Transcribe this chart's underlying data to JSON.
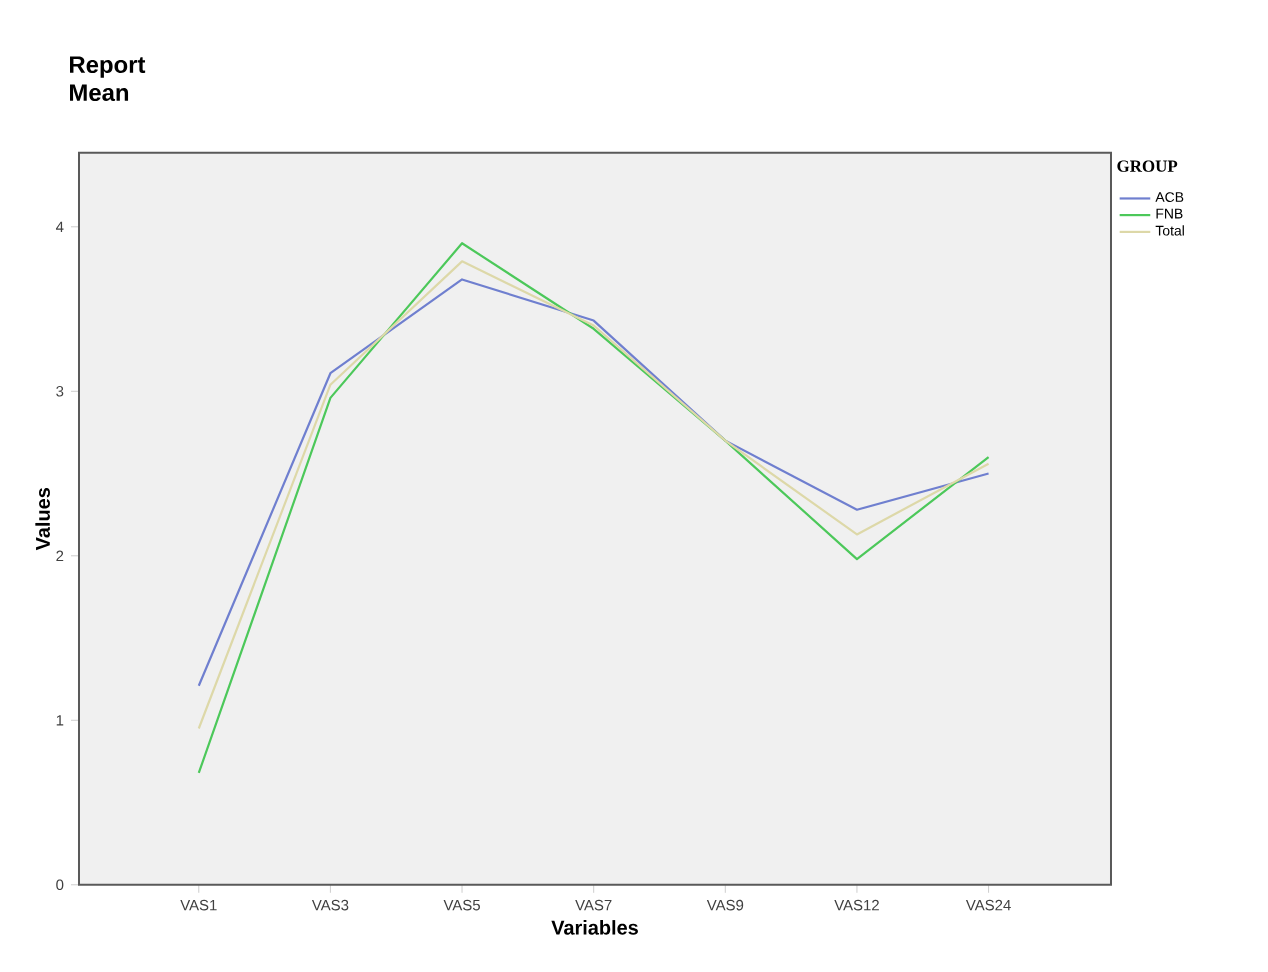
{
  "chart_data": {
    "type": "line",
    "title": "Report",
    "subtitle": "Mean",
    "xlabel": "Variables",
    "ylabel": "Values",
    "legend_title": "GROUP",
    "categories": [
      "VAS1",
      "VAS3",
      "VAS5",
      "VAS7",
      "VAS9",
      "VAS12",
      "VAS24"
    ],
    "ylim": [
      0,
      4.45
    ],
    "yticks": [
      0,
      1,
      2,
      3,
      4
    ],
    "grid": false,
    "legend": "top right",
    "marker": "none",
    "line_style": "solid",
    "series": [
      {
        "name": "ACB",
        "color": "#6f7fcf",
        "values": [
          1.21,
          3.11,
          3.68,
          3.43,
          2.7,
          2.28,
          2.5
        ]
      },
      {
        "name": "FNB",
        "color": "#4cc85a",
        "values": [
          0.68,
          2.96,
          3.9,
          3.38,
          2.7,
          1.98,
          2.6
        ]
      },
      {
        "name": "Total",
        "color": "#ddd8a8",
        "values": [
          0.95,
          3.04,
          3.79,
          3.4,
          2.7,
          2.13,
          2.56
        ]
      }
    ]
  }
}
